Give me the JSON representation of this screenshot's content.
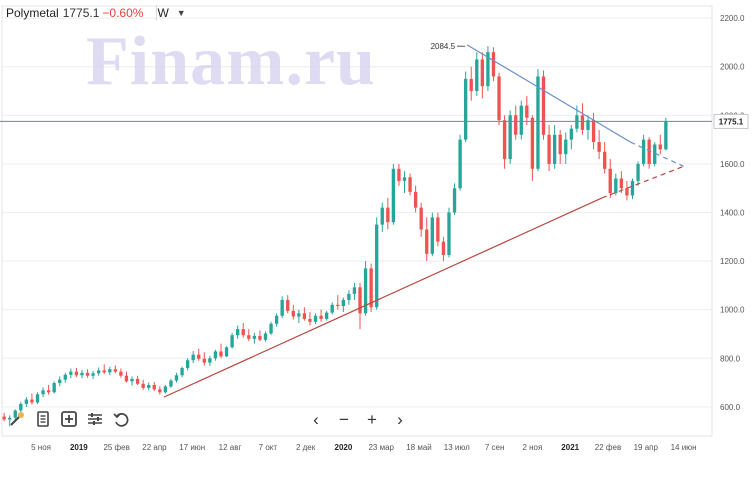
{
  "header": {
    "ticker": "Polymetal",
    "price": "1775.1",
    "change": "−0.60%",
    "timeframe": "W",
    "caret_icon": "chevron-down-icon"
  },
  "watermark": "Finam.ru",
  "toolbar": {
    "icons": [
      "magic-wand-icon",
      "notes-icon",
      "add-indicator-icon",
      "settings-sliders-icon",
      "undo-icon"
    ]
  },
  "navigation": {
    "prev": "‹",
    "zoom_out": "−",
    "zoom_in": "+",
    "next": "›"
  },
  "colors": {
    "up": "#26a69a",
    "down": "#ef5350",
    "support_line": "#b5483f",
    "resistance_line": "#6a8fc7",
    "price_line": "#43a089",
    "price_label_bg": "#ffffff",
    "grid": "#eeeeee"
  },
  "chart_data": {
    "type": "candlestick",
    "timeframe": "W",
    "title": "",
    "xlabel": "",
    "ylabel": "",
    "x_range": [
      "2018-10-29",
      "2021-06-21"
    ],
    "ylim": [
      480,
      2250
    ],
    "y_ticks": [
      "600.0",
      "800.0",
      "1000.0",
      "1200.0",
      "1400.0",
      "1600.0",
      "1800.0",
      "2000.0",
      "2200.0"
    ],
    "x_ticks": [
      {
        "label": "5 ноя",
        "bold": false
      },
      {
        "label": "2019",
        "bold": true
      },
      {
        "label": "25 фев",
        "bold": false
      },
      {
        "label": "22 апр",
        "bold": false
      },
      {
        "label": "17 июн",
        "bold": false
      },
      {
        "label": "12 авг",
        "bold": false
      },
      {
        "label": "7 окт",
        "bold": false
      },
      {
        "label": "2 дек",
        "bold": false
      },
      {
        "label": "2020",
        "bold": true
      },
      {
        "label": "23 мар",
        "bold": false
      },
      {
        "label": "18 май",
        "bold": false
      },
      {
        "label": "13 июл",
        "bold": false
      },
      {
        "label": "7 сен",
        "bold": false
      },
      {
        "label": "2 ноя",
        "bold": false
      },
      {
        "label": "2021",
        "bold": true
      },
      {
        "label": "22 фев",
        "bold": false
      },
      {
        "label": "19 апр",
        "bold": false
      },
      {
        "label": "14 июн",
        "bold": false
      }
    ],
    "current_price": {
      "value": 1775.1,
      "label": "1775.1"
    },
    "peak_annotation": {
      "label": "2084.5",
      "value": 2084.5
    },
    "trendlines": [
      {
        "name": "support",
        "style": "solid-then-dashed",
        "from": [
          0.228,
          640
        ],
        "to": [
          0.845,
          1460
        ],
        "extend_to": [
          0.96,
          1590
        ]
      },
      {
        "name": "resistance",
        "style": "solid-then-dashed",
        "from": [
          0.655,
          2090
        ],
        "to": [
          0.885,
          1690
        ],
        "extend_to": [
          0.96,
          1590
        ]
      }
    ],
    "candles": [
      {
        "o": 560,
        "h": 575,
        "l": 540,
        "c": 548
      },
      {
        "o": 548,
        "h": 565,
        "l": 520,
        "c": 555
      },
      {
        "o": 555,
        "h": 590,
        "l": 545,
        "c": 585
      },
      {
        "o": 585,
        "h": 620,
        "l": 578,
        "c": 612
      },
      {
        "o": 612,
        "h": 640,
        "l": 600,
        "c": 630
      },
      {
        "o": 630,
        "h": 655,
        "l": 610,
        "c": 618
      },
      {
        "o": 618,
        "h": 660,
        "l": 612,
        "c": 652
      },
      {
        "o": 652,
        "h": 680,
        "l": 640,
        "c": 668
      },
      {
        "o": 668,
        "h": 690,
        "l": 650,
        "c": 660
      },
      {
        "o": 660,
        "h": 705,
        "l": 655,
        "c": 698
      },
      {
        "o": 698,
        "h": 725,
        "l": 685,
        "c": 712
      },
      {
        "o": 712,
        "h": 740,
        "l": 700,
        "c": 732
      },
      {
        "o": 732,
        "h": 758,
        "l": 718,
        "c": 745
      },
      {
        "o": 745,
        "h": 760,
        "l": 722,
        "c": 730
      },
      {
        "o": 730,
        "h": 752,
        "l": 718,
        "c": 740
      },
      {
        "o": 740,
        "h": 755,
        "l": 720,
        "c": 728
      },
      {
        "o": 728,
        "h": 748,
        "l": 715,
        "c": 738
      },
      {
        "o": 738,
        "h": 762,
        "l": 728,
        "c": 750
      },
      {
        "o": 750,
        "h": 775,
        "l": 735,
        "c": 742
      },
      {
        "o": 742,
        "h": 765,
        "l": 730,
        "c": 755
      },
      {
        "o": 755,
        "h": 770,
        "l": 738,
        "c": 745
      },
      {
        "o": 745,
        "h": 758,
        "l": 720,
        "c": 728
      },
      {
        "o": 728,
        "h": 745,
        "l": 700,
        "c": 705
      },
      {
        "o": 705,
        "h": 725,
        "l": 688,
        "c": 715
      },
      {
        "o": 715,
        "h": 728,
        "l": 690,
        "c": 695
      },
      {
        "o": 695,
        "h": 712,
        "l": 670,
        "c": 678
      },
      {
        "o": 678,
        "h": 700,
        "l": 668,
        "c": 690
      },
      {
        "o": 690,
        "h": 702,
        "l": 665,
        "c": 672
      },
      {
        "o": 672,
        "h": 685,
        "l": 650,
        "c": 660
      },
      {
        "o": 660,
        "h": 690,
        "l": 655,
        "c": 684
      },
      {
        "o": 684,
        "h": 715,
        "l": 678,
        "c": 708
      },
      {
        "o": 708,
        "h": 740,
        "l": 700,
        "c": 730
      },
      {
        "o": 730,
        "h": 765,
        "l": 722,
        "c": 760
      },
      {
        "o": 760,
        "h": 800,
        "l": 750,
        "c": 792
      },
      {
        "o": 792,
        "h": 830,
        "l": 780,
        "c": 815
      },
      {
        "o": 815,
        "h": 840,
        "l": 790,
        "c": 798
      },
      {
        "o": 798,
        "h": 825,
        "l": 770,
        "c": 782
      },
      {
        "o": 782,
        "h": 810,
        "l": 768,
        "c": 800
      },
      {
        "o": 800,
        "h": 835,
        "l": 790,
        "c": 828
      },
      {
        "o": 828,
        "h": 860,
        "l": 800,
        "c": 808
      },
      {
        "o": 808,
        "h": 850,
        "l": 805,
        "c": 845
      },
      {
        "o": 845,
        "h": 905,
        "l": 840,
        "c": 895
      },
      {
        "o": 895,
        "h": 935,
        "l": 880,
        "c": 920
      },
      {
        "o": 920,
        "h": 945,
        "l": 885,
        "c": 895
      },
      {
        "o": 895,
        "h": 920,
        "l": 870,
        "c": 880
      },
      {
        "o": 880,
        "h": 905,
        "l": 860,
        "c": 892
      },
      {
        "o": 892,
        "h": 915,
        "l": 870,
        "c": 876
      },
      {
        "o": 876,
        "h": 910,
        "l": 868,
        "c": 902
      },
      {
        "o": 902,
        "h": 950,
        "l": 895,
        "c": 942
      },
      {
        "o": 942,
        "h": 985,
        "l": 930,
        "c": 975
      },
      {
        "o": 975,
        "h": 1055,
        "l": 965,
        "c": 1040
      },
      {
        "o": 1040,
        "h": 1060,
        "l": 985,
        "c": 995
      },
      {
        "o": 995,
        "h": 1020,
        "l": 960,
        "c": 972
      },
      {
        "o": 972,
        "h": 1000,
        "l": 945,
        "c": 985
      },
      {
        "o": 985,
        "h": 1010,
        "l": 955,
        "c": 962
      },
      {
        "o": 962,
        "h": 990,
        "l": 935,
        "c": 950
      },
      {
        "o": 950,
        "h": 985,
        "l": 940,
        "c": 975
      },
      {
        "o": 975,
        "h": 1000,
        "l": 950,
        "c": 962
      },
      {
        "o": 962,
        "h": 995,
        "l": 955,
        "c": 988
      },
      {
        "o": 988,
        "h": 1030,
        "l": 980,
        "c": 1020
      },
      {
        "o": 1020,
        "h": 1060,
        "l": 1000,
        "c": 1015
      },
      {
        "o": 1015,
        "h": 1050,
        "l": 990,
        "c": 1040
      },
      {
        "o": 1040,
        "h": 1080,
        "l": 1020,
        "c": 1065
      },
      {
        "o": 1065,
        "h": 1110,
        "l": 1040,
        "c": 1092
      },
      {
        "o": 1092,
        "h": 1110,
        "l": 920,
        "c": 985
      },
      {
        "o": 985,
        "h": 1200,
        "l": 975,
        "c": 1170
      },
      {
        "o": 1170,
        "h": 1190,
        "l": 990,
        "c": 1010
      },
      {
        "o": 1010,
        "h": 1380,
        "l": 1000,
        "c": 1350
      },
      {
        "o": 1350,
        "h": 1440,
        "l": 1320,
        "c": 1420
      },
      {
        "o": 1420,
        "h": 1460,
        "l": 1330,
        "c": 1360
      },
      {
        "o": 1360,
        "h": 1600,
        "l": 1350,
        "c": 1580
      },
      {
        "o": 1580,
        "h": 1600,
        "l": 1510,
        "c": 1530
      },
      {
        "o": 1530,
        "h": 1570,
        "l": 1480,
        "c": 1545
      },
      {
        "o": 1545,
        "h": 1560,
        "l": 1470,
        "c": 1485
      },
      {
        "o": 1485,
        "h": 1510,
        "l": 1400,
        "c": 1420
      },
      {
        "o": 1420,
        "h": 1440,
        "l": 1300,
        "c": 1330
      },
      {
        "o": 1330,
        "h": 1380,
        "l": 1200,
        "c": 1230
      },
      {
        "o": 1230,
        "h": 1400,
        "l": 1220,
        "c": 1380
      },
      {
        "o": 1380,
        "h": 1400,
        "l": 1260,
        "c": 1280
      },
      {
        "o": 1280,
        "h": 1300,
        "l": 1200,
        "c": 1225
      },
      {
        "o": 1225,
        "h": 1420,
        "l": 1215,
        "c": 1400
      },
      {
        "o": 1400,
        "h": 1520,
        "l": 1390,
        "c": 1500
      },
      {
        "o": 1500,
        "h": 1720,
        "l": 1490,
        "c": 1700
      },
      {
        "o": 1700,
        "h": 1980,
        "l": 1690,
        "c": 1950
      },
      {
        "o": 1950,
        "h": 2000,
        "l": 1860,
        "c": 1900
      },
      {
        "o": 1900,
        "h": 2060,
        "l": 1880,
        "c": 2030
      },
      {
        "o": 2030,
        "h": 2060,
        "l": 1870,
        "c": 1920
      },
      {
        "o": 1920,
        "h": 2084.5,
        "l": 1900,
        "c": 2060
      },
      {
        "o": 2060,
        "h": 2080,
        "l": 1940,
        "c": 1960
      },
      {
        "o": 1960,
        "h": 1975,
        "l": 1760,
        "c": 1780
      },
      {
        "o": 1780,
        "h": 1800,
        "l": 1580,
        "c": 1620
      },
      {
        "o": 1620,
        "h": 1820,
        "l": 1600,
        "c": 1800
      },
      {
        "o": 1800,
        "h": 1840,
        "l": 1700,
        "c": 1720
      },
      {
        "o": 1720,
        "h": 1860,
        "l": 1700,
        "c": 1840
      },
      {
        "o": 1840,
        "h": 1880,
        "l": 1760,
        "c": 1790
      },
      {
        "o": 1790,
        "h": 1800,
        "l": 1530,
        "c": 1580
      },
      {
        "o": 1580,
        "h": 1990,
        "l": 1570,
        "c": 1960
      },
      {
        "o": 1960,
        "h": 1985,
        "l": 1700,
        "c": 1720
      },
      {
        "o": 1720,
        "h": 1760,
        "l": 1570,
        "c": 1600
      },
      {
        "o": 1600,
        "h": 1760,
        "l": 1580,
        "c": 1720
      },
      {
        "o": 1720,
        "h": 1740,
        "l": 1600,
        "c": 1640
      },
      {
        "o": 1640,
        "h": 1730,
        "l": 1600,
        "c": 1700
      },
      {
        "o": 1700,
        "h": 1760,
        "l": 1660,
        "c": 1745
      },
      {
        "o": 1745,
        "h": 1840,
        "l": 1730,
        "c": 1800
      },
      {
        "o": 1800,
        "h": 1850,
        "l": 1720,
        "c": 1740
      },
      {
        "o": 1740,
        "h": 1800,
        "l": 1700,
        "c": 1780
      },
      {
        "o": 1780,
        "h": 1810,
        "l": 1660,
        "c": 1690
      },
      {
        "o": 1690,
        "h": 1740,
        "l": 1620,
        "c": 1650
      },
      {
        "o": 1650,
        "h": 1690,
        "l": 1560,
        "c": 1580
      },
      {
        "o": 1580,
        "h": 1620,
        "l": 1460,
        "c": 1480
      },
      {
        "o": 1480,
        "h": 1560,
        "l": 1470,
        "c": 1540
      },
      {
        "o": 1540,
        "h": 1570,
        "l": 1480,
        "c": 1500
      },
      {
        "o": 1500,
        "h": 1530,
        "l": 1450,
        "c": 1470
      },
      {
        "o": 1470,
        "h": 1540,
        "l": 1455,
        "c": 1530
      },
      {
        "o": 1530,
        "h": 1610,
        "l": 1510,
        "c": 1600
      },
      {
        "o": 1600,
        "h": 1720,
        "l": 1590,
        "c": 1700
      },
      {
        "o": 1700,
        "h": 1710,
        "l": 1580,
        "c": 1600
      },
      {
        "o": 1600,
        "h": 1690,
        "l": 1590,
        "c": 1680
      },
      {
        "o": 1680,
        "h": 1720,
        "l": 1640,
        "c": 1660
      },
      {
        "o": 1660,
        "h": 1790,
        "l": 1655,
        "c": 1775.1
      }
    ]
  }
}
